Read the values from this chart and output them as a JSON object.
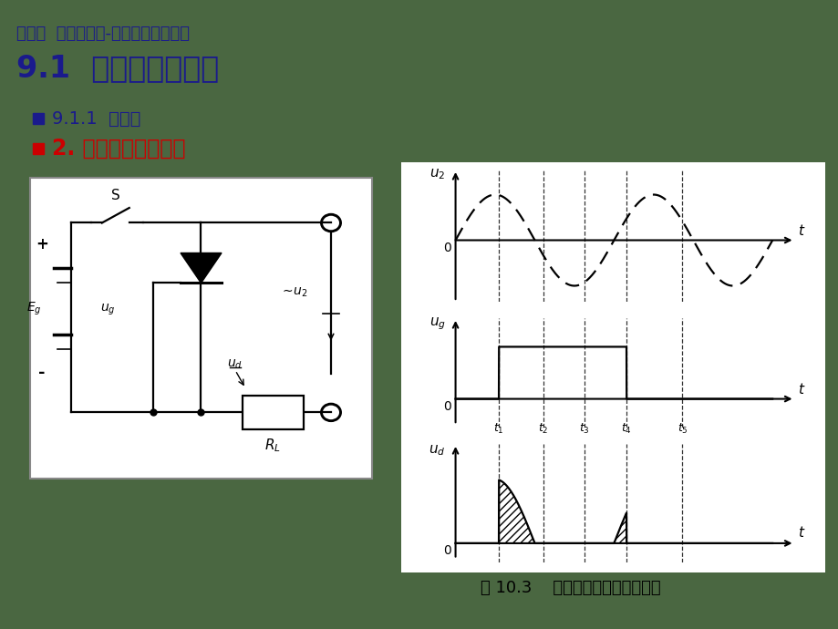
{
  "bg_color": "#4a6741",
  "title_line1": "第九章  电力电子学-晶闸管及基本电路",
  "title_line2": "9.1  电力半导体器件",
  "bullet1": "9.1.1  晶闸管",
  "bullet2": "2. 晶闸管的工作原理",
  "caption": "图 10.3    晶闸管工作情况的实验图",
  "title1_color": "#1a1a8c",
  "title2_color": "#1a1a8c",
  "bullet1_color": "#1a1a8c",
  "bullet2_color": "#cc0000",
  "caption_color": "#000000",
  "t1": 0.52,
  "t2": 1.05,
  "t3": 1.55,
  "t4": 2.05,
  "t5": 2.72,
  "xmax": 3.8
}
